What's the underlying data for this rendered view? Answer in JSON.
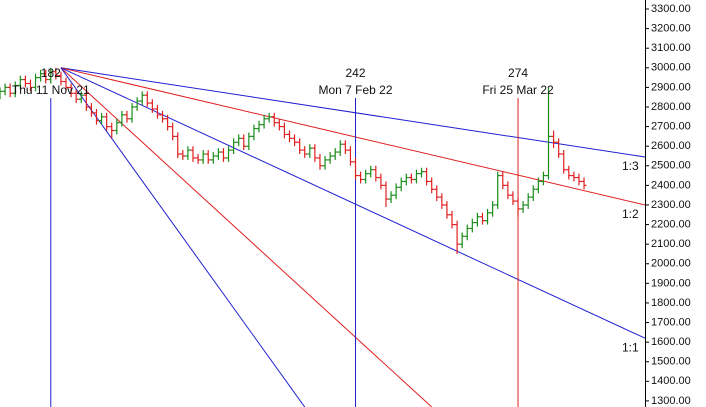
{
  "chart_data": {
    "type": "ohlc",
    "x": [
      172,
      173,
      174,
      175,
      176,
      177,
      178,
      179,
      180,
      181,
      182,
      183,
      184,
      185,
      186,
      187,
      188,
      189,
      190,
      191,
      192,
      193,
      194,
      195,
      196,
      197,
      198,
      199,
      200,
      201,
      202,
      203,
      204,
      205,
      206,
      207,
      208,
      209,
      210,
      211,
      212,
      213,
      214,
      215,
      216,
      217,
      218,
      219,
      220,
      221,
      222,
      223,
      224,
      225,
      226,
      227,
      228,
      229,
      230,
      231,
      232,
      233,
      234,
      235,
      236,
      237,
      238,
      239,
      240,
      241,
      242,
      243,
      244,
      245,
      246,
      247,
      248,
      249,
      250,
      251,
      252,
      253,
      254,
      255,
      256,
      257,
      258,
      259,
      260,
      261,
      262,
      263,
      264,
      265,
      266,
      267,
      268,
      269,
      270,
      271,
      272,
      273,
      274,
      275,
      276,
      277,
      278,
      279,
      280,
      281,
      282,
      283,
      284,
      285,
      286,
      287
    ],
    "open": [
      2860,
      2880,
      2900,
      2870,
      2910,
      2940,
      2920,
      2900,
      2950,
      2970,
      2940,
      2980,
      2960,
      2930,
      2900,
      2870,
      2840,
      2860,
      2800,
      2770,
      2730,
      2750,
      2700,
      2680,
      2720,
      2760,
      2740,
      2800,
      2830,
      2860,
      2820,
      2790,
      2760,
      2740,
      2700,
      2650,
      2560,
      2550,
      2580,
      2540,
      2530,
      2560,
      2530,
      2550,
      2570,
      2540,
      2580,
      2620,
      2640,
      2600,
      2650,
      2690,
      2710,
      2740,
      2750,
      2720,
      2700,
      2660,
      2640,
      2620,
      2580,
      2560,
      2590,
      2540,
      2500,
      2530,
      2550,
      2570,
      2610,
      2580,
      2520,
      2450,
      2430,
      2460,
      2480,
      2440,
      2400,
      2330,
      2350,
      2390,
      2420,
      2440,
      2430,
      2460,
      2470,
      2420,
      2380,
      2340,
      2300,
      2250,
      2200,
      2100,
      2140,
      2180,
      2210,
      2240,
      2220,
      2260,
      2300,
      2450,
      2400,
      2350,
      2320,
      2280,
      2300,
      2340,
      2380,
      2420,
      2450,
      2650,
      2620,
      2560,
      2480,
      2450,
      2440,
      2420
    ],
    "high": [
      2900,
      2920,
      2920,
      2930,
      2960,
      2960,
      2940,
      2970,
      2990,
      2990,
      3000,
      3000,
      2980,
      2950,
      2920,
      2890,
      2880,
      2880,
      2820,
      2790,
      2770,
      2770,
      2720,
      2740,
      2780,
      2780,
      2820,
      2850,
      2880,
      2880,
      2840,
      2810,
      2780,
      2760,
      2720,
      2670,
      2580,
      2600,
      2600,
      2560,
      2580,
      2580,
      2570,
      2590,
      2590,
      2600,
      2640,
      2660,
      2660,
      2670,
      2710,
      2730,
      2760,
      2770,
      2770,
      2740,
      2720,
      2680,
      2660,
      2640,
      2600,
      2610,
      2610,
      2560,
      2550,
      2570,
      2590,
      2630,
      2630,
      2600,
      2540,
      2470,
      2480,
      2500,
      2500,
      2460,
      2420,
      2370,
      2410,
      2440,
      2460,
      2460,
      2480,
      2490,
      2490,
      2440,
      2400,
      2360,
      2320,
      2270,
      2220,
      2160,
      2200,
      2230,
      2260,
      2260,
      2280,
      2320,
      2470,
      2470,
      2420,
      2370,
      2340,
      2320,
      2360,
      2400,
      2440,
      2470,
      2900,
      2680,
      2640,
      2580,
      2500,
      2470,
      2460,
      2440
    ],
    "low": [
      2840,
      2860,
      2850,
      2850,
      2890,
      2900,
      2880,
      2880,
      2930,
      2920,
      2920,
      2940,
      2910,
      2880,
      2850,
      2820,
      2820,
      2780,
      2750,
      2710,
      2710,
      2680,
      2640,
      2660,
      2700,
      2720,
      2720,
      2780,
      2810,
      2800,
      2770,
      2740,
      2720,
      2680,
      2630,
      2540,
      2530,
      2530,
      2520,
      2510,
      2510,
      2510,
      2510,
      2530,
      2520,
      2520,
      2560,
      2600,
      2580,
      2580,
      2630,
      2670,
      2690,
      2720,
      2700,
      2680,
      2640,
      2620,
      2600,
      2560,
      2540,
      2540,
      2520,
      2480,
      2480,
      2510,
      2530,
      2550,
      2560,
      2500,
      2430,
      2410,
      2410,
      2440,
      2420,
      2380,
      2290,
      2310,
      2330,
      2370,
      2400,
      2410,
      2410,
      2440,
      2400,
      2360,
      2320,
      2280,
      2230,
      2180,
      2050,
      2080,
      2120,
      2160,
      2190,
      2200,
      2200,
      2240,
      2280,
      2380,
      2330,
      2300,
      2240,
      2260,
      2280,
      2320,
      2360,
      2400,
      2430,
      2590,
      2540,
      2460,
      2430,
      2420,
      2400,
      2380
    ],
    "close": [
      2880,
      2900,
      2870,
      2910,
      2940,
      2920,
      2900,
      2950,
      2970,
      2940,
      2980,
      2960,
      2930,
      2900,
      2870,
      2840,
      2860,
      2800,
      2770,
      2730,
      2750,
      2700,
      2680,
      2720,
      2760,
      2740,
      2800,
      2830,
      2860,
      2820,
      2790,
      2760,
      2740,
      2700,
      2650,
      2560,
      2550,
      2580,
      2540,
      2530,
      2560,
      2530,
      2550,
      2570,
      2540,
      2580,
      2620,
      2640,
      2600,
      2650,
      2690,
      2710,
      2740,
      2750,
      2720,
      2700,
      2660,
      2640,
      2620,
      2580,
      2560,
      2590,
      2540,
      2500,
      2530,
      2550,
      2570,
      2610,
      2580,
      2520,
      2450,
      2430,
      2460,
      2480,
      2440,
      2400,
      2330,
      2350,
      2390,
      2420,
      2440,
      2430,
      2460,
      2470,
      2420,
      2380,
      2340,
      2300,
      2250,
      2200,
      2100,
      2140,
      2180,
      2210,
      2240,
      2220,
      2260,
      2300,
      2450,
      2400,
      2350,
      2320,
      2280,
      2300,
      2340,
      2380,
      2420,
      2450,
      2650,
      2620,
      2560,
      2480,
      2450,
      2440,
      2420,
      2400
    ],
    "up_color": "#1a8c1a",
    "down_color": "#e02020",
    "xlim": [
      172,
      299
    ],
    "ylim": [
      1269,
      3346
    ],
    "yticks": [
      {
        "value": 1300,
        "label": "1300.00"
      },
      {
        "value": 1400,
        "label": "1400.00"
      },
      {
        "value": 1500,
        "label": "1500.00"
      },
      {
        "value": 1600,
        "label": "1600.00"
      },
      {
        "value": 1700,
        "label": "1700.00"
      },
      {
        "value": 1800,
        "label": "1800.00"
      },
      {
        "value": 1900,
        "label": "1900.00"
      },
      {
        "value": 2000,
        "label": "2000.00"
      },
      {
        "value": 2100,
        "label": "2100.00"
      },
      {
        "value": 2200,
        "label": "2200.00"
      },
      {
        "value": 2300,
        "label": "2300.00"
      },
      {
        "value": 2400,
        "label": "2400.00"
      },
      {
        "value": 2500,
        "label": "2500.00"
      },
      {
        "value": 2600,
        "label": "2600.00"
      },
      {
        "value": 2700,
        "label": "2700.00"
      },
      {
        "value": 2800,
        "label": "2800.00"
      },
      {
        "value": 2900,
        "label": "2900.00"
      },
      {
        "value": 3000,
        "label": "3000.00"
      },
      {
        "value": 3100,
        "label": "3100.00"
      },
      {
        "value": 3200,
        "label": "3200.00"
      },
      {
        "value": 3300,
        "label": "3300.00"
      }
    ],
    "markers": [
      {
        "x": 182,
        "label": "182",
        "date": "Thu 11 Nov 21",
        "color": "#2020d0"
      },
      {
        "x": 242,
        "label": "242",
        "date": "Mon 7 Feb 22",
        "color": "#2020d0"
      },
      {
        "x": 274,
        "label": "274",
        "date": "Fri 25 Mar 22",
        "color": "#e02020"
      }
    ],
    "fan": {
      "origin": [
        184,
        3000
      ],
      "lines": [
        {
          "label": "1:3",
          "color": "#2020d0",
          "end": [
            299,
            2545
          ]
        },
        {
          "label": "1:2",
          "color": "#e02020",
          "end": [
            299,
            2300
          ]
        },
        {
          "label": "1:1",
          "color": "#2020d0",
          "end": [
            299,
            1620
          ]
        },
        {
          "color": "#e02020",
          "end": [
            257,
            1269
          ]
        },
        {
          "color": "#2020d0",
          "end": [
            232,
            1269
          ]
        }
      ]
    }
  }
}
